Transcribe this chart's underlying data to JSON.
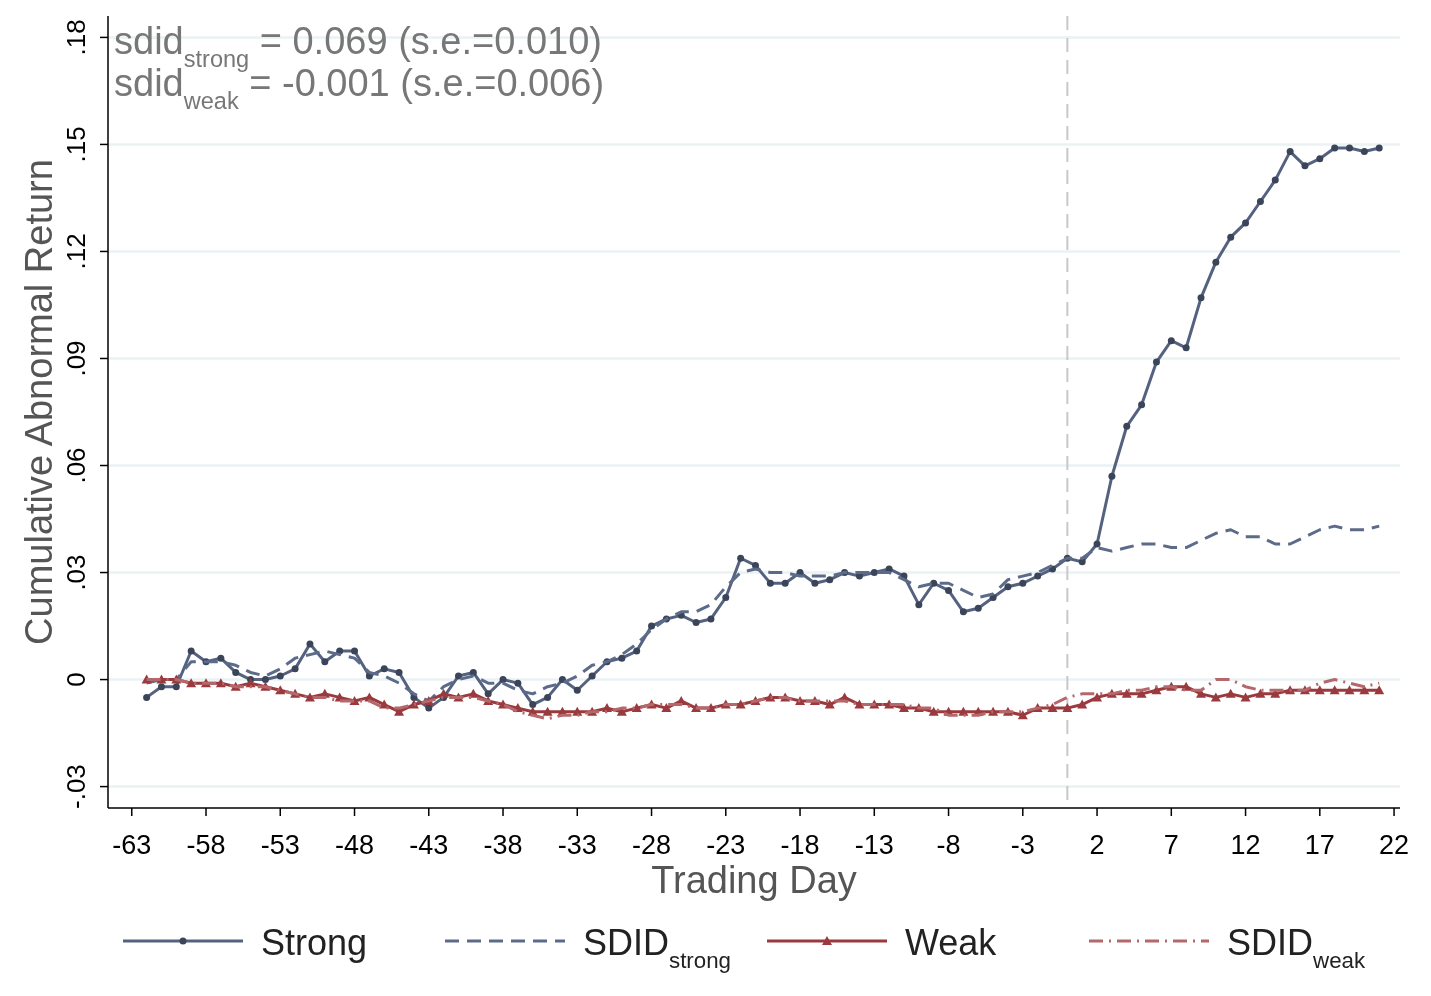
{
  "chart_data": {
    "type": "line",
    "xlabel": "Trading Day",
    "ylabel": "Cumulative Abnormal Return",
    "annotations": [
      "sdid$_{strong}$ = 0.069 (s.e.=0.010)",
      "sdid$_{weak}$ = -0.001 (s.e.=0.006)"
    ],
    "x": [
      -62,
      -61,
      -60,
      -59,
      -58,
      -57,
      -56,
      -55,
      -54,
      -53,
      -52,
      -51,
      -50,
      -49,
      -48,
      -47,
      -46,
      -45,
      -44,
      -43,
      -42,
      -41,
      -40,
      -39,
      -38,
      -37,
      -36,
      -35,
      -34,
      -33,
      -32,
      -31,
      -30,
      -29,
      -28,
      -27,
      -26,
      -25,
      -24,
      -23,
      -22,
      -21,
      -20,
      -19,
      -18,
      -17,
      -16,
      -15,
      -14,
      -13,
      -12,
      -11,
      -10,
      -9,
      -8,
      -7,
      -6,
      -5,
      -4,
      -3,
      -2,
      -1,
      0,
      1,
      2,
      3,
      4,
      5,
      6,
      7,
      8,
      9,
      10,
      11,
      12,
      13,
      14,
      15,
      16,
      17,
      18,
      19,
      20,
      21
    ],
    "series": [
      {
        "name": "Strong",
        "color": "#55627f",
        "marker": "circle",
        "line_style": "solid",
        "values": [
          -0.005,
          -0.002,
          -0.002,
          0.008,
          0.005,
          0.006,
          0.002,
          0.0,
          0.0,
          0.001,
          0.003,
          0.01,
          0.005,
          0.008,
          0.008,
          0.001,
          0.003,
          0.002,
          -0.005,
          -0.008,
          -0.005,
          0.001,
          0.002,
          -0.004,
          0.0,
          -0.001,
          -0.007,
          -0.005,
          0.0,
          -0.003,
          0.001,
          0.005,
          0.006,
          0.008,
          0.015,
          0.017,
          0.018,
          0.016,
          0.017,
          0.023,
          0.034,
          0.032,
          0.027,
          0.027,
          0.03,
          0.027,
          0.028,
          0.03,
          0.029,
          0.03,
          0.031,
          0.029,
          0.021,
          0.027,
          0.025,
          0.019,
          0.02,
          0.023,
          0.026,
          0.027,
          0.029,
          0.031,
          0.034,
          0.033,
          0.038,
          0.057,
          0.071,
          0.077,
          0.089,
          0.095,
          0.093,
          0.107,
          0.117,
          0.124,
          0.128,
          0.134,
          0.14,
          0.148,
          0.144,
          0.146,
          0.149,
          0.149,
          0.148,
          0.149
        ]
      },
      {
        "name": "SDID$_{strong}$",
        "color": "#5c6b8a",
        "marker": "none",
        "line_style": "dashed",
        "values": [
          -0.001,
          0.0,
          0.0,
          0.005,
          0.005,
          0.005,
          0.004,
          0.002,
          0.001,
          0.003,
          0.006,
          0.007,
          0.008,
          0.007,
          0.006,
          0.002,
          0.001,
          -0.001,
          -0.004,
          -0.006,
          -0.002,
          0.0,
          0.001,
          -0.001,
          -0.001,
          -0.003,
          -0.004,
          -0.002,
          -0.001,
          0.001,
          0.004,
          0.005,
          0.007,
          0.01,
          0.014,
          0.017,
          0.019,
          0.019,
          0.021,
          0.026,
          0.03,
          0.031,
          0.03,
          0.03,
          0.029,
          0.029,
          0.029,
          0.03,
          0.03,
          0.03,
          0.03,
          0.028,
          0.026,
          0.027,
          0.027,
          0.025,
          0.023,
          0.024,
          0.028,
          0.029,
          0.03,
          0.032,
          0.034,
          0.034,
          0.037,
          0.036,
          0.037,
          0.038,
          0.038,
          0.037,
          0.037,
          0.039,
          0.041,
          0.042,
          0.04,
          0.04,
          0.038,
          0.038,
          0.04,
          0.042,
          0.043,
          0.042,
          0.042,
          0.043
        ]
      },
      {
        "name": "Weak",
        "color": "#9b3a3e",
        "marker": "triangle",
        "line_style": "solid",
        "values": [
          0.0,
          0.0,
          0.0,
          -0.001,
          -0.001,
          -0.001,
          -0.002,
          -0.001,
          -0.002,
          -0.003,
          -0.004,
          -0.005,
          -0.004,
          -0.005,
          -0.006,
          -0.005,
          -0.007,
          -0.009,
          -0.007,
          -0.006,
          -0.004,
          -0.005,
          -0.004,
          -0.006,
          -0.007,
          -0.008,
          -0.009,
          -0.009,
          -0.009,
          -0.009,
          -0.009,
          -0.008,
          -0.009,
          -0.008,
          -0.007,
          -0.008,
          -0.006,
          -0.008,
          -0.008,
          -0.007,
          -0.007,
          -0.006,
          -0.005,
          -0.005,
          -0.006,
          -0.006,
          -0.007,
          -0.005,
          -0.007,
          -0.007,
          -0.007,
          -0.008,
          -0.008,
          -0.009,
          -0.009,
          -0.009,
          -0.009,
          -0.009,
          -0.009,
          -0.01,
          -0.008,
          -0.008,
          -0.008,
          -0.007,
          -0.005,
          -0.004,
          -0.004,
          -0.004,
          -0.003,
          -0.002,
          -0.002,
          -0.004,
          -0.005,
          -0.004,
          -0.005,
          -0.004,
          -0.004,
          -0.003,
          -0.003,
          -0.003,
          -0.003,
          -0.003,
          -0.003,
          -0.003
        ]
      },
      {
        "name": "SDID$_{weak}$",
        "color": "#b5686b",
        "marker": "none",
        "line_style": "dashdot",
        "values": [
          0.0,
          0.0,
          0.0,
          -0.001,
          -0.001,
          -0.001,
          -0.002,
          -0.002,
          -0.002,
          -0.003,
          -0.004,
          -0.005,
          -0.005,
          -0.006,
          -0.006,
          -0.006,
          -0.008,
          -0.008,
          -0.007,
          -0.006,
          -0.005,
          -0.005,
          -0.005,
          -0.006,
          -0.007,
          -0.009,
          -0.01,
          -0.011,
          -0.01,
          -0.01,
          -0.009,
          -0.009,
          -0.008,
          -0.008,
          -0.007,
          -0.007,
          -0.007,
          -0.008,
          -0.008,
          -0.007,
          -0.007,
          -0.006,
          -0.005,
          -0.005,
          -0.006,
          -0.006,
          -0.006,
          -0.006,
          -0.007,
          -0.007,
          -0.007,
          -0.007,
          -0.008,
          -0.008,
          -0.01,
          -0.01,
          -0.01,
          -0.009,
          -0.009,
          -0.009,
          -0.008,
          -0.007,
          -0.005,
          -0.004,
          -0.004,
          -0.004,
          -0.003,
          -0.003,
          -0.002,
          -0.002,
          -0.003,
          -0.003,
          0.0,
          0.0,
          -0.002,
          -0.003,
          -0.003,
          -0.003,
          -0.003,
          -0.001,
          0.0,
          -0.001,
          -0.002,
          -0.001
        ]
      }
    ],
    "xlim": [
      -64.6,
      22.4
    ],
    "xticks": [
      -63,
      -58,
      -53,
      -48,
      -43,
      -38,
      -33,
      -28,
      -23,
      -18,
      -13,
      -8,
      -3,
      2,
      7,
      12,
      17,
      22
    ],
    "ylim": [
      -0.036,
      0.186
    ],
    "yticks": [
      {
        "value": -0.03,
        "label": "-.03"
      },
      {
        "value": 0,
        "label": "0"
      },
      {
        "value": 0.03,
        "label": ".03"
      },
      {
        "value": 0.06,
        "label": ".06"
      },
      {
        "value": 0.09,
        "label": ".09"
      },
      {
        "value": 0.12,
        "label": ".12"
      },
      {
        "value": 0.15,
        "label": ".15"
      },
      {
        "value": 0.18,
        "label": ".18"
      }
    ],
    "grid": "y",
    "legend": "bottom",
    "ref_lines": [
      {
        "axis": "x",
        "value": 0,
        "color": "#c8c8c8",
        "line_style": "dashed"
      }
    ]
  }
}
